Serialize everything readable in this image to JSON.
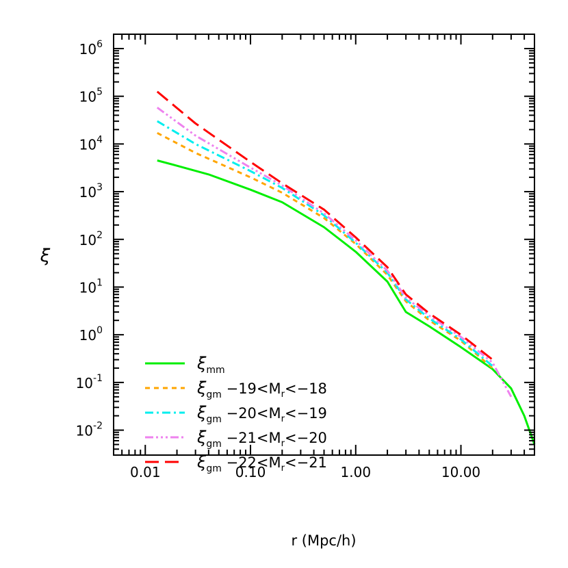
{
  "chart_data": {
    "type": "line",
    "x_scale": "log",
    "y_scale": "log",
    "xlim": [
      0.005,
      50
    ],
    "ylim": [
      0.003,
      2000000
    ],
    "xlabel": "r (Mpc/h)",
    "ylabel": "ξ",
    "x_ticks": [
      {
        "value": 0.01,
        "label": "0.01"
      },
      {
        "value": 0.1,
        "label": "0.10"
      },
      {
        "value": 1,
        "label": "1.00"
      },
      {
        "value": 10,
        "label": "10.00"
      }
    ],
    "y_ticks": [
      {
        "value": 0.01,
        "base": "10",
        "exp": "-2"
      },
      {
        "value": 0.1,
        "base": "10",
        "exp": "-1"
      },
      {
        "value": 1,
        "base": "10",
        "exp": "0"
      },
      {
        "value": 10,
        "base": "10",
        "exp": "1"
      },
      {
        "value": 100,
        "base": "10",
        "exp": "2"
      },
      {
        "value": 1000,
        "base": "10",
        "exp": "3"
      },
      {
        "value": 10000,
        "base": "10",
        "exp": "4"
      },
      {
        "value": 100000,
        "base": "10",
        "exp": "5"
      },
      {
        "value": 1000000,
        "base": "10",
        "exp": "6"
      }
    ],
    "legend_position": "bottom-left",
    "series": [
      {
        "name": "ξmm",
        "label_main": "ξ",
        "label_sub": "mm",
        "label_range": "",
        "color": "#00ee00",
        "dash": "solid",
        "points": [
          [
            0.013,
            4500
          ],
          [
            0.02,
            3500
          ],
          [
            0.04,
            2300
          ],
          [
            0.1,
            1100
          ],
          [
            0.2,
            600
          ],
          [
            0.5,
            180
          ],
          [
            1.0,
            55
          ],
          [
            2.0,
            13
          ],
          [
            3.0,
            3.0
          ],
          [
            5.0,
            1.5
          ],
          [
            10.0,
            0.55
          ],
          [
            20.0,
            0.19
          ],
          [
            30.0,
            0.075
          ],
          [
            40.0,
            0.02
          ],
          [
            50.0,
            0.005
          ]
        ]
      },
      {
        "name": "ξgm −19<Mr<−18",
        "label_main": "ξ",
        "label_sub": "gm",
        "label_range": "−19<M|r|<−18",
        "color": "#ffa500",
        "dash": "7,6",
        "points": [
          [
            0.013,
            17000
          ],
          [
            0.03,
            6500
          ],
          [
            0.1,
            2000
          ],
          [
            0.2,
            950
          ],
          [
            0.5,
            280
          ],
          [
            1.0,
            80
          ],
          [
            2.0,
            18
          ],
          [
            3.0,
            5.0
          ],
          [
            5.0,
            2.0
          ],
          [
            10.0,
            0.75
          ],
          [
            20.0,
            0.2
          ]
        ]
      },
      {
        "name": "ξgm −20<Mr<−19",
        "label_main": "ξ",
        "label_sub": "gm",
        "label_range": "−20<M|r|<−19",
        "color": "#00eeee",
        "dash": "12,5,3,5",
        "points": [
          [
            0.013,
            30000
          ],
          [
            0.03,
            10000
          ],
          [
            0.1,
            2700
          ],
          [
            0.2,
            1200
          ],
          [
            0.5,
            320
          ],
          [
            1.0,
            85
          ],
          [
            2.0,
            20
          ],
          [
            3.0,
            5.5
          ],
          [
            5.0,
            2.2
          ],
          [
            10.0,
            0.8
          ],
          [
            20.0,
            0.22
          ]
        ]
      },
      {
        "name": "ξgm −21<Mr<−20",
        "label_main": "ξ",
        "label_sub": "gm",
        "label_range": "−21<M|r|<−20",
        "color": "#ee82ee",
        "dash": "12,4,3,4,3,4,3,4",
        "points": [
          [
            0.013,
            58000
          ],
          [
            0.03,
            15000
          ],
          [
            0.1,
            3200
          ],
          [
            0.2,
            1350
          ],
          [
            0.5,
            350
          ],
          [
            1.0,
            95
          ],
          [
            2.0,
            22
          ],
          [
            3.0,
            6.0
          ],
          [
            5.0,
            2.5
          ],
          [
            10.0,
            0.9
          ],
          [
            20.0,
            0.26
          ],
          [
            30.0,
            0.05
          ]
        ]
      },
      {
        "name": "ξgm −22<Mr<−21",
        "label_main": "ξ",
        "label_sub": "gm",
        "label_range": "−22<M|r|<−21",
        "color": "#ff0000",
        "dash": "20,9",
        "points": [
          [
            0.013,
            125000
          ],
          [
            0.03,
            27000
          ],
          [
            0.1,
            4200
          ],
          [
            0.2,
            1500
          ],
          [
            0.5,
            420
          ],
          [
            1.0,
            110
          ],
          [
            2.0,
            26
          ],
          [
            3.0,
            7.0
          ],
          [
            5.0,
            2.8
          ],
          [
            10.0,
            1.0
          ],
          [
            20.0,
            0.3
          ]
        ]
      }
    ]
  }
}
